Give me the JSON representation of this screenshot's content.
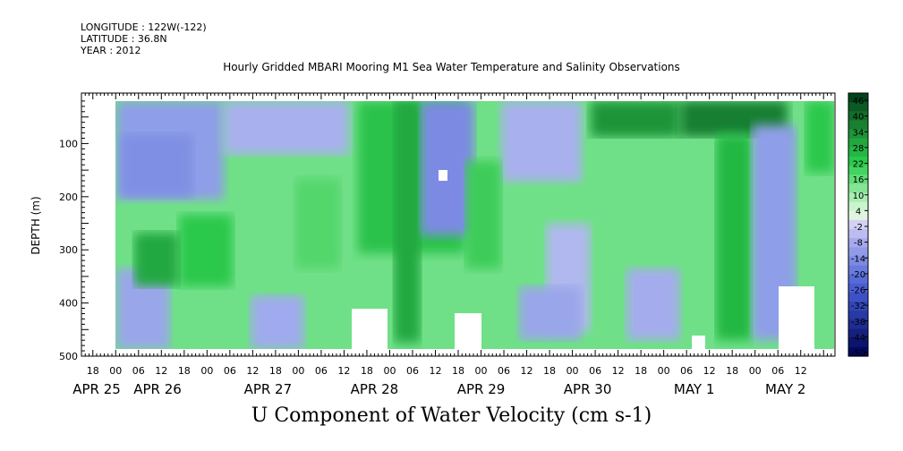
{
  "header": {
    "longitude": "LONGITUDE : 122W(-122)",
    "latitude": "LATITUDE : 36.8N",
    "year": "YEAR : 2012"
  },
  "chart_data": {
    "type": "heatmap",
    "title": "Hourly Gridded MBARI Mooring M1 Sea Water Temperature and Salinity Observations",
    "xlabel": "U Component of Water Velocity (cm s-1)",
    "ylabel": "DEPTH (m)",
    "ylim": [
      500,
      20
    ],
    "y_ticks": [
      100,
      200,
      300,
      400,
      500
    ],
    "x_range_hours": [
      -9,
      189
    ],
    "x_tick_labels": [
      {
        "h": -6,
        "label": "18"
      },
      {
        "h": 0,
        "label": "00"
      },
      {
        "h": 6,
        "label": "06"
      },
      {
        "h": 12,
        "label": "12"
      },
      {
        "h": 18,
        "label": "18"
      },
      {
        "h": 24,
        "label": "00"
      },
      {
        "h": 30,
        "label": "06"
      },
      {
        "h": 36,
        "label": "12"
      },
      {
        "h": 42,
        "label": "18"
      },
      {
        "h": 48,
        "label": "00"
      },
      {
        "h": 54,
        "label": "06"
      },
      {
        "h": 60,
        "label": "12"
      },
      {
        "h": 66,
        "label": "18"
      },
      {
        "h": 72,
        "label": "00"
      },
      {
        "h": 78,
        "label": "06"
      },
      {
        "h": 84,
        "label": "12"
      },
      {
        "h": 90,
        "label": "18"
      },
      {
        "h": 96,
        "label": "00"
      },
      {
        "h": 102,
        "label": "06"
      },
      {
        "h": 108,
        "label": "12"
      },
      {
        "h": 114,
        "label": "18"
      },
      {
        "h": 120,
        "label": "00"
      },
      {
        "h": 126,
        "label": "06"
      },
      {
        "h": 132,
        "label": "12"
      },
      {
        "h": 138,
        "label": "18"
      },
      {
        "h": 144,
        "label": "00"
      },
      {
        "h": 150,
        "label": "06"
      },
      {
        "h": 156,
        "label": "12"
      },
      {
        "h": 162,
        "label": "18"
      },
      {
        "h": 168,
        "label": "00"
      },
      {
        "h": 174,
        "label": "06"
      },
      {
        "h": 180,
        "label": "12"
      }
    ],
    "date_labels": [
      {
        "h": -5,
        "label": "APR 25"
      },
      {
        "h": 11,
        "label": "APR 26"
      },
      {
        "h": 40,
        "label": "APR 27"
      },
      {
        "h": 68,
        "label": "APR 28"
      },
      {
        "h": 96,
        "label": "APR 29"
      },
      {
        "h": 124,
        "label": "APR 30"
      },
      {
        "h": 152,
        "label": "MAY  1"
      },
      {
        "h": 176,
        "label": "MAY  2"
      }
    ],
    "colorbar": {
      "labels": [
        "46",
        "40",
        "34",
        "28",
        "22",
        "16",
        "10",
        "4",
        "-2",
        "-8",
        "-14",
        "-20",
        "-26",
        "-32",
        "-38",
        "-44",
        "-50"
      ],
      "colors": [
        "#00441b",
        "#0b5a23",
        "#136d2b",
        "#197f31",
        "#1d9438",
        "#20a83f",
        "#23b843",
        "#2ac84b",
        "#43d35f",
        "#62dc78",
        "#85e495",
        "#a9eeb2",
        "#c8f5cd",
        "#e0f5e0",
        "#d2d2f5",
        "#bcbcf0",
        "#a6a9ee",
        "#929be9",
        "#7d8ae3",
        "#6a7ade",
        "#576bd8",
        "#4a5ed2",
        "#3d51c6",
        "#3245b6",
        "#2838a4",
        "#1e2c92",
        "#15207f",
        "#0c156e",
        "#03095e"
      ]
    }
  }
}
